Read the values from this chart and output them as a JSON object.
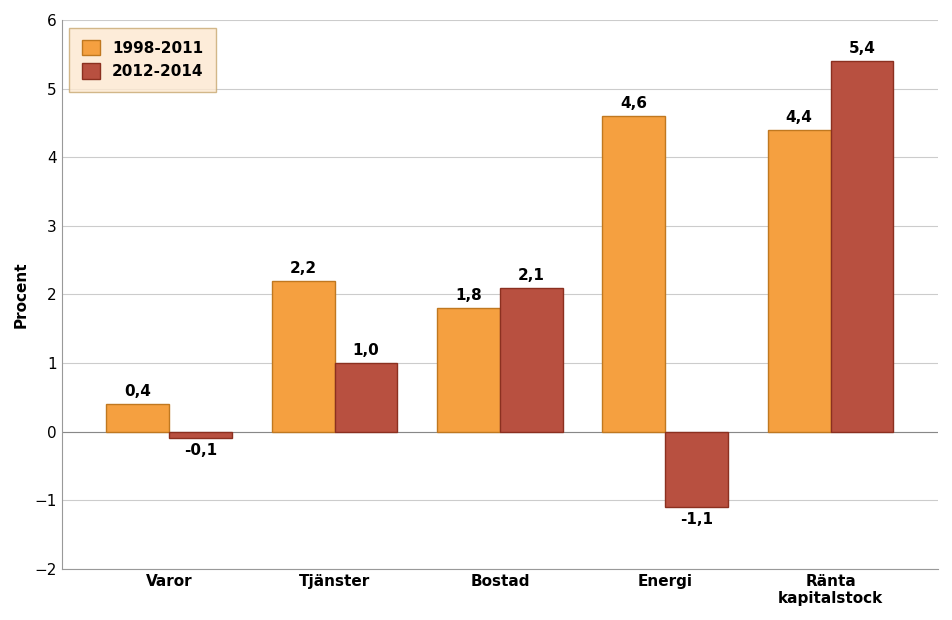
{
  "categories": [
    "Varor",
    "Tjänster",
    "Bostad",
    "Energi",
    "Ränta\nkapitalstock"
  ],
  "series": [
    {
      "label": "1998-2011",
      "values": [
        0.4,
        2.2,
        1.8,
        4.6,
        4.4
      ],
      "color": "#F5A040",
      "edge_color": "#C07820"
    },
    {
      "label": "2012-2014",
      "values": [
        -0.1,
        1.0,
        2.1,
        -1.1,
        5.4
      ],
      "color": "#B85040",
      "edge_color": "#8B3020"
    }
  ],
  "ylabel": "Procent",
  "ylim": [
    -2,
    6
  ],
  "yticks": [
    -2,
    -1,
    0,
    1,
    2,
    3,
    4,
    5,
    6
  ],
  "bar_width": 0.38,
  "bar_gap": 0.0,
  "legend_facecolor": "#FDE8D0",
  "legend_edgecolor": "#C8A870",
  "background_color": "#FFFFFF",
  "grid_color": "#CCCCCC",
  "label_fontsize": 11,
  "annotation_fontsize": 11,
  "ylabel_fontsize": 11,
  "tick_fontsize": 11
}
